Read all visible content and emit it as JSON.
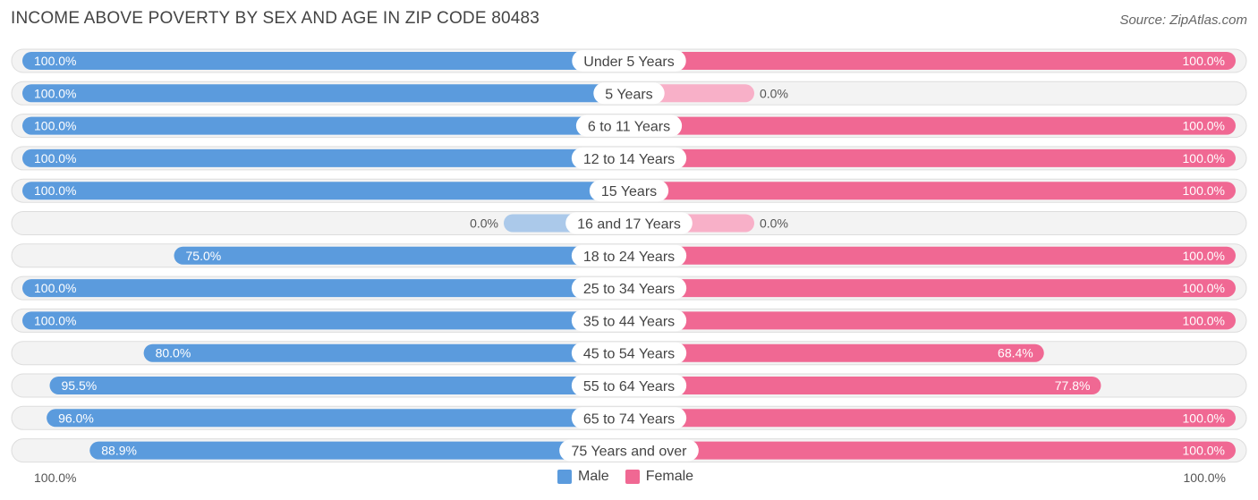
{
  "title": "INCOME ABOVE POVERTY BY SEX AND AGE IN ZIP CODE 80483",
  "source": "Source: ZipAtlas.com",
  "colors": {
    "male": "#5b9bdd",
    "male_light": "#abc9ea",
    "female": "#f06893",
    "female_light": "#f8b0c8"
  },
  "legend": {
    "male": "Male",
    "female": "Female"
  },
  "axis": {
    "left": "100.0%",
    "right": "100.0%"
  },
  "chart_data": {
    "type": "bar",
    "orientation": "horizontal-diverging",
    "title": "INCOME ABOVE POVERTY BY SEX AND AGE IN ZIP CODE 80483",
    "categories": [
      "Under 5 Years",
      "5 Years",
      "6 to 11 Years",
      "12 to 14 Years",
      "15 Years",
      "16 and 17 Years",
      "18 to 24 Years",
      "25 to 34 Years",
      "35 to 44 Years",
      "45 to 54 Years",
      "55 to 64 Years",
      "65 to 74 Years",
      "75 Years and over"
    ],
    "series": [
      {
        "name": "Male",
        "values": [
          100.0,
          100.0,
          100.0,
          100.0,
          100.0,
          0.0,
          75.0,
          100.0,
          100.0,
          80.0,
          95.5,
          96.0,
          88.9
        ],
        "labels": [
          "100.0%",
          "100.0%",
          "100.0%",
          "100.0%",
          "100.0%",
          "0.0%",
          "75.0%",
          "100.0%",
          "100.0%",
          "80.0%",
          "95.5%",
          "96.0%",
          "88.9%"
        ]
      },
      {
        "name": "Female",
        "values": [
          100.0,
          0.0,
          100.0,
          100.0,
          100.0,
          0.0,
          100.0,
          100.0,
          100.0,
          68.4,
          77.8,
          100.0,
          100.0
        ],
        "labels": [
          "100.0%",
          "0.0%",
          "100.0%",
          "100.0%",
          "100.0%",
          "0.0%",
          "100.0%",
          "100.0%",
          "100.0%",
          "68.4%",
          "77.8%",
          "100.0%",
          "100.0%"
        ]
      }
    ],
    "xlim": [
      0,
      100
    ],
    "legend_position": "bottom-center"
  }
}
